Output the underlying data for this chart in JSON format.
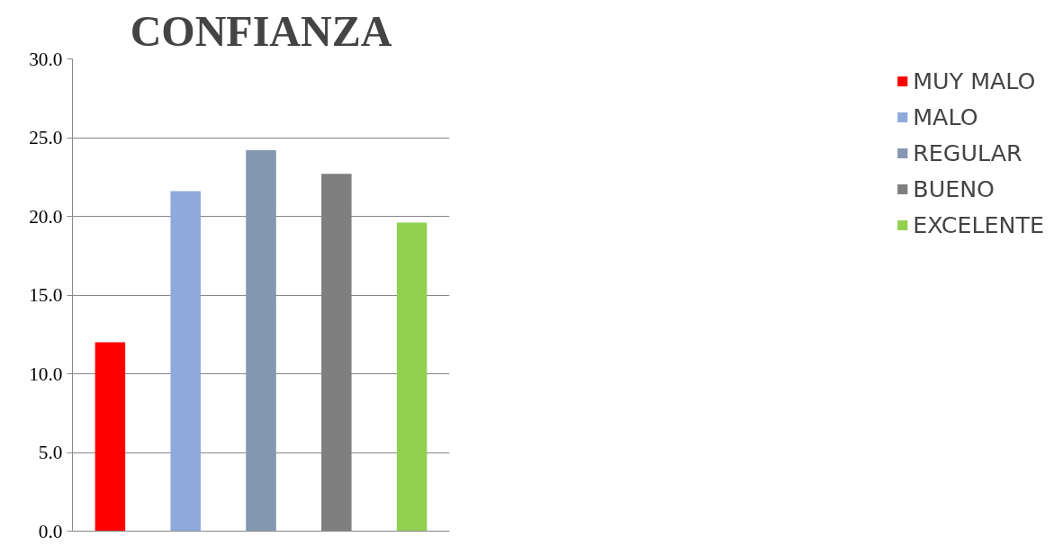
{
  "chart_data": {
    "type": "bar",
    "title": "CONFIANZA",
    "categories": [
      null,
      null,
      null,
      null,
      null
    ],
    "series": [
      {
        "name": "MUY MALO",
        "color": "#ff0000",
        "values": [
          12.0,
          null,
          null,
          null,
          null
        ]
      },
      {
        "name": "MALO",
        "color": "#8eaadb",
        "values": [
          null,
          21.6,
          null,
          null,
          null
        ]
      },
      {
        "name": "REGULAR",
        "color": "#8497b0",
        "values": [
          null,
          null,
          24.2,
          null,
          null
        ]
      },
      {
        "name": "BUENO",
        "color": "#7f7f7f",
        "values": [
          null,
          null,
          null,
          22.7,
          null
        ]
      },
      {
        "name": "EXCELENTE",
        "color": "#92d050",
        "values": [
          null,
          null,
          null,
          null,
          19.6
        ]
      }
    ],
    "ylim": [
      0,
      30
    ],
    "yticks": [
      {
        "value": 0,
        "label": "0.0"
      },
      {
        "value": 5,
        "label": "5.0"
      },
      {
        "value": 10,
        "label": "10.0"
      },
      {
        "value": 15,
        "label": "15.0"
      },
      {
        "value": 20,
        "label": "20.0"
      },
      {
        "value": 25,
        "label": "25.0"
      },
      {
        "value": 30,
        "label": "30.0"
      }
    ],
    "grid": "y",
    "legend": "right",
    "tick_labels": "y"
  }
}
